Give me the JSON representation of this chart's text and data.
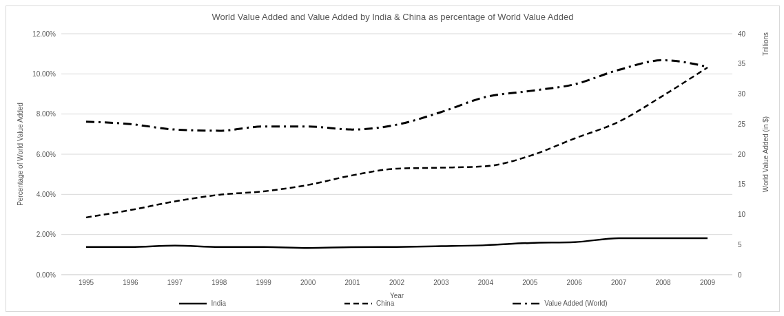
{
  "chart_data": {
    "type": "line",
    "title": "World Value Added and Value Added by India & China as percentage of World Value Added",
    "xlabel": "Year",
    "ylabel": "Percentage of World Value Added",
    "y2label": "World Value Added (in $)",
    "annotations": [
      "Trillions"
    ],
    "categories": [
      "1995",
      "1996",
      "1997",
      "1998",
      "1999",
      "2000",
      "2001",
      "2002",
      "2003",
      "2004",
      "2005",
      "2006",
      "2007",
      "2008",
      "2009"
    ],
    "series": [
      {
        "name": "India",
        "color": "#000000",
        "line_style": "solid",
        "values": [
          1.38,
          1.38,
          1.45,
          1.38,
          1.38,
          1.33,
          1.37,
          1.38,
          1.42,
          1.47,
          1.58,
          1.62,
          1.82,
          1.82,
          1.82
        ]
      },
      {
        "name": "China",
        "color": "#000000",
        "line_style": "dashed",
        "values": [
          2.85,
          3.22,
          3.65,
          3.98,
          4.15,
          4.47,
          4.95,
          5.28,
          5.33,
          5.4,
          5.92,
          6.78,
          7.62,
          8.92,
          10.32
        ]
      },
      {
        "name": "Value Added (World)",
        "color": "#000000",
        "line_style": "dashdot",
        "axis": "y2",
        "values": [
          25.4,
          25.0,
          24.1,
          23.9,
          24.6,
          24.6,
          24.1,
          24.9,
          27.0,
          29.5,
          30.5,
          31.6,
          34.0,
          35.6,
          34.5
        ]
      }
    ],
    "ylim": [
      0,
      12
    ],
    "yticks": [
      {
        "value": 0,
        "label": "0.00%"
      },
      {
        "value": 2,
        "label": "2.00%"
      },
      {
        "value": 4,
        "label": "4.00%"
      },
      {
        "value": 6,
        "label": "6.00%"
      },
      {
        "value": 8,
        "label": "8.00%"
      },
      {
        "value": 10,
        "label": "10.00%"
      },
      {
        "value": 12,
        "label": "12.00%"
      }
    ],
    "y2lim": [
      0,
      40
    ],
    "y2ticks": [
      0,
      5,
      10,
      15,
      20,
      25,
      30,
      35,
      40
    ],
    "grid": "y",
    "legend": "bottom",
    "marker": "none"
  }
}
